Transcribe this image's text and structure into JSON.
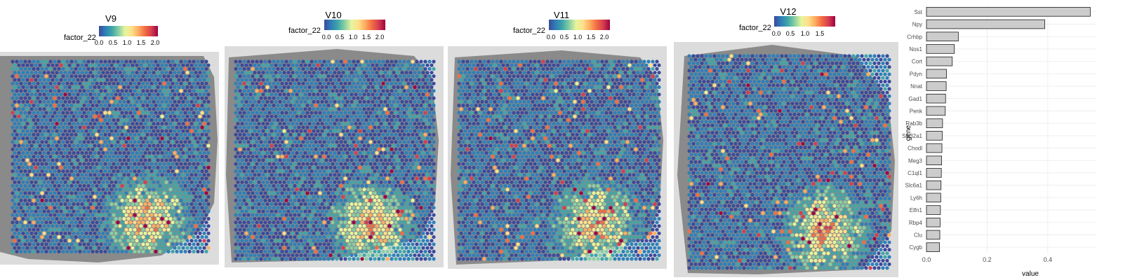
{
  "colors": {
    "scale": [
      "#3b4a9c",
      "#2f7fb8",
      "#3fa6a8",
      "#88cfa4",
      "#e6f59d",
      "#fee08b",
      "#fdae61",
      "#f46d43",
      "#d53e4f",
      "#9e0142"
    ],
    "tissue_bg": "#d9d9d9",
    "bar_fill": "#cccccc",
    "bar_stroke": "#1a1a1a",
    "grid": "#ebebeb"
  },
  "chart_data": [
    {
      "type": "heatmap",
      "title": "V9",
      "legend_title": "factor_22",
      "legend_ticks": [
        "0.0",
        "0.5",
        "1.0",
        "1.5",
        "2.0"
      ],
      "color_range": [
        0,
        2.1
      ]
    },
    {
      "type": "heatmap",
      "title": "V10",
      "legend_title": "factor_22",
      "legend_ticks": [
        "0.0",
        "0.5",
        "1.0",
        "1.5",
        "2.0"
      ],
      "color_range": [
        0,
        2.2
      ]
    },
    {
      "type": "heatmap",
      "title": "V11",
      "legend_title": "factor_22",
      "legend_ticks": [
        "0.0",
        "0.5",
        "1.0",
        "1.5",
        "2.0"
      ],
      "color_range": [
        0,
        2.2
      ]
    },
    {
      "type": "heatmap",
      "title": "V12",
      "legend_title": "factor_22",
      "legend_ticks": [
        "0.0",
        "0.5",
        "1.0",
        "1.5"
      ],
      "color_range": [
        0,
        1.9
      ]
    },
    {
      "type": "bar",
      "orientation": "horizontal",
      "categories": [
        "Sst",
        "Npy",
        "Crhbp",
        "Nos1",
        "Cort",
        "Pdyn",
        "Nnat",
        "Gad1",
        "Penk",
        "Rab3b",
        "Slc32a1",
        "Chodl",
        "Meg3",
        "C1ql1",
        "Slc6a1",
        "Ly6h",
        "Elfn1",
        "Rbp4",
        "Clu",
        "Cygb"
      ],
      "values": [
        0.54,
        0.39,
        0.105,
        0.092,
        0.085,
        0.066,
        0.065,
        0.063,
        0.062,
        0.053,
        0.052,
        0.051,
        0.05,
        0.049,
        0.048,
        0.047,
        0.046,
        0.045,
        0.044,
        0.043
      ],
      "xlabel": "value",
      "ylabel": "gene",
      "xlim": [
        0,
        0.56
      ],
      "xticks": [
        "0.0",
        "0.2",
        "0.4"
      ],
      "grid": true
    }
  ]
}
